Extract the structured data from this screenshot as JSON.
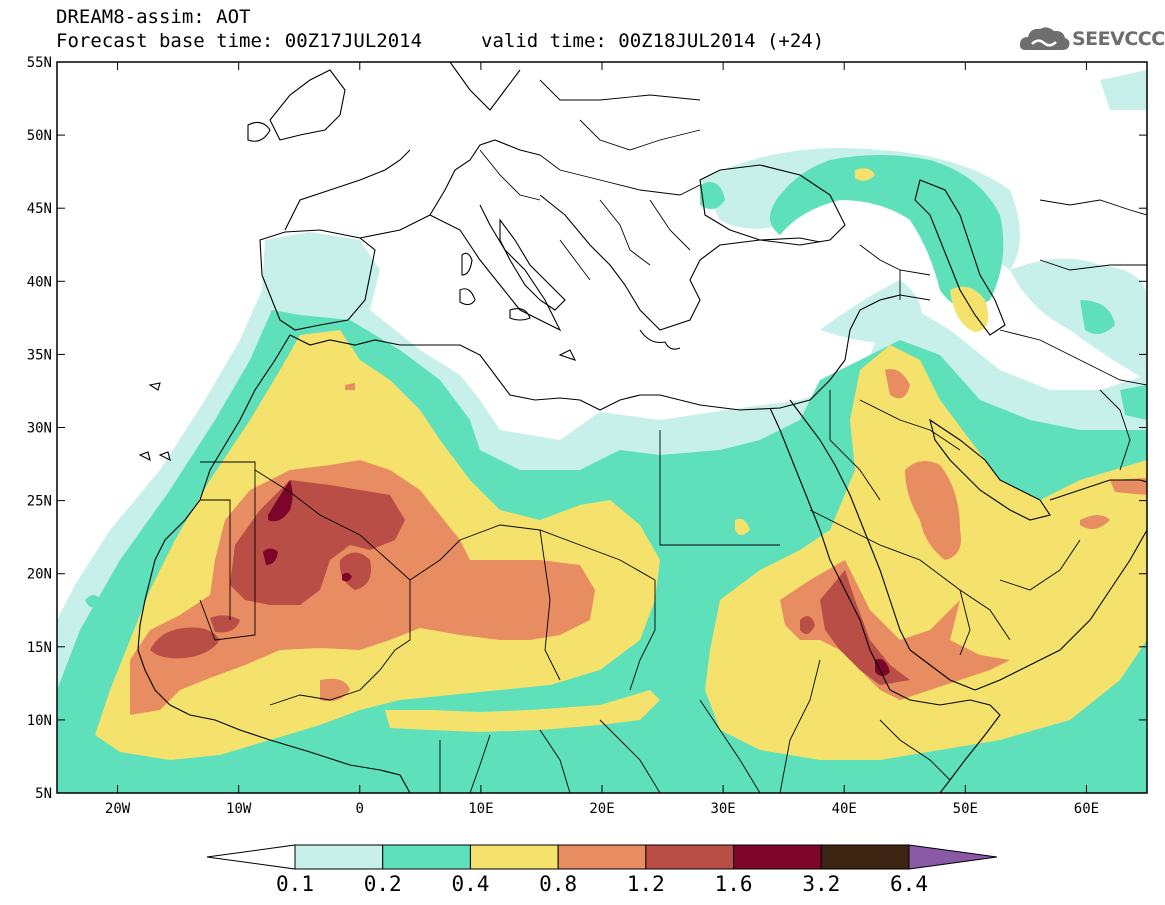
{
  "header": {
    "title": "DREAM8-assim: AOT",
    "base_time": "Forecast base time: 00Z17JUL2014",
    "valid_time": "valid time: 00Z18JUL2014 (+24)"
  },
  "logo": {
    "text": "SEEVCCC",
    "icon": "cloud-icon"
  },
  "map": {
    "lon_range": [
      -25,
      65
    ],
    "lat_range": [
      5,
      55
    ],
    "lat_ticks": [
      "5N",
      "10N",
      "15N",
      "20N",
      "25N",
      "30N",
      "35N",
      "40N",
      "45N",
      "50N",
      "55N"
    ],
    "lon_ticks": [
      "20W",
      "10W",
      "0",
      "10E",
      "20E",
      "30E",
      "40E",
      "50E",
      "60E"
    ]
  },
  "colorbar": {
    "labels": [
      "0.1",
      "0.2",
      "0.4",
      "0.8",
      "1.2",
      "1.6",
      "3.2",
      "6.4"
    ],
    "colors": [
      "#ffffff",
      "#c6f0e9",
      "#5ee0bb",
      "#f5e26d",
      "#e88c62",
      "#b84e45",
      "#7d0529",
      "#3b2412",
      "#8a5aa6"
    ]
  },
  "colors": {
    "c1": "#c6f0e9",
    "c2": "#5ee0bb",
    "c3": "#f5e26d",
    "c4": "#e88c62",
    "c5": "#b84e45",
    "c6": "#7d0529",
    "coast": "#000000"
  }
}
